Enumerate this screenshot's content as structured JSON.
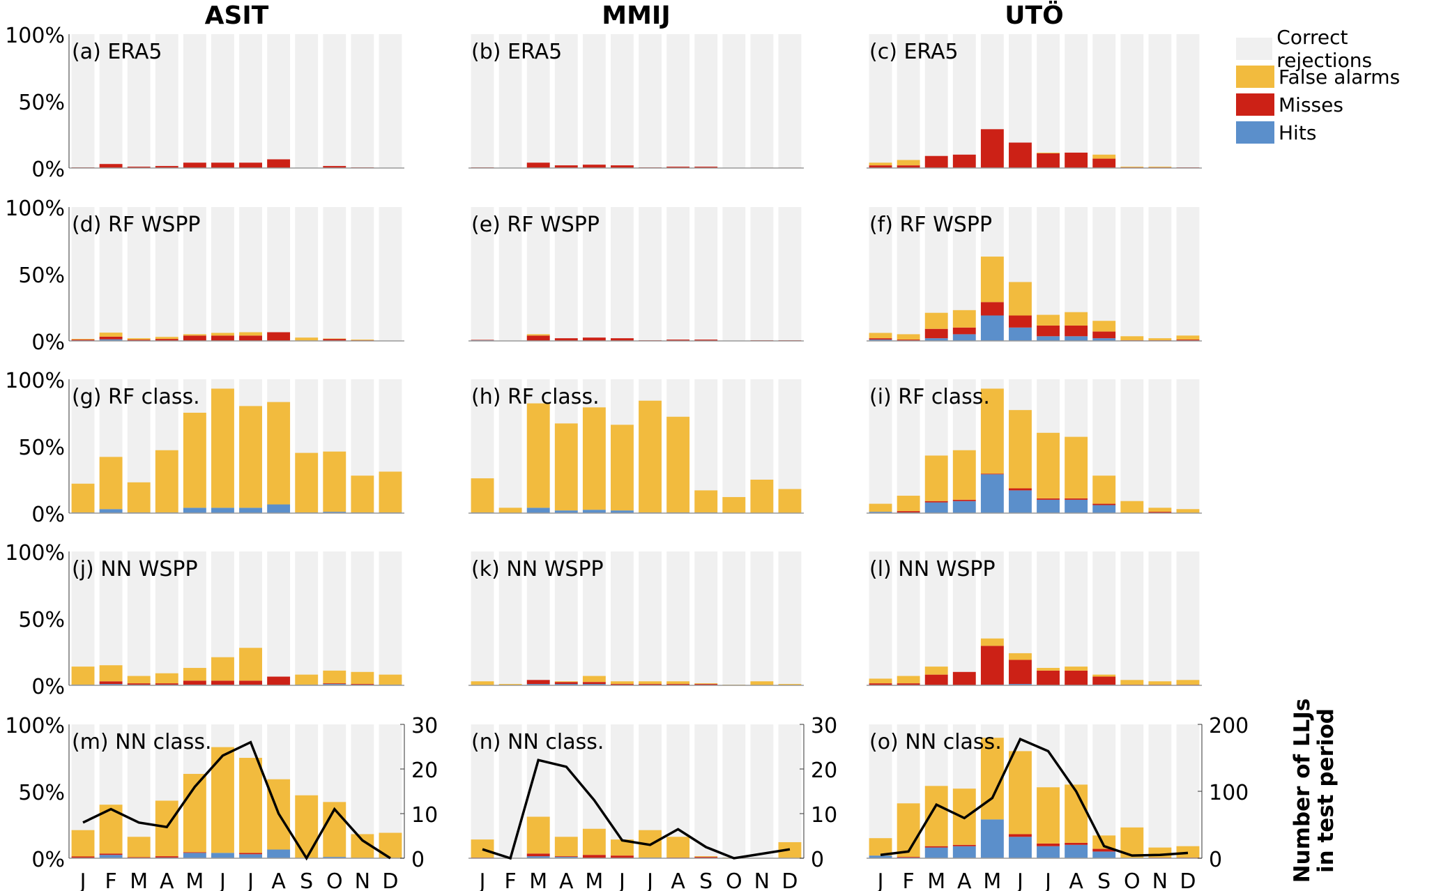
{
  "columns": [
    "ASIT",
    "MMIJ",
    "UTÖ"
  ],
  "legend": [
    {
      "name": "Correct rejections",
      "color": "#f0f0f0"
    },
    {
      "name": "False alarms",
      "color": "#f2bb3e"
    },
    {
      "name": "Misses",
      "color": "#cc2116"
    },
    {
      "name": "Hits",
      "color": "#5b8fcb"
    }
  ],
  "left_ticks": [
    "0%",
    "50%",
    "100%"
  ],
  "right_axis": {
    "label_line1": "Number of LLJs",
    "label_line2": "in test period",
    "ticks_small": [
      "0",
      "10",
      "20",
      "30"
    ],
    "ticks_large": [
      "0",
      "100",
      "200"
    ]
  },
  "months": [
    "J",
    "F",
    "M",
    "A",
    "M",
    "J",
    "J",
    "A",
    "S",
    "O",
    "N",
    "D"
  ],
  "chart_data": [
    {
      "type": "bar",
      "stacked": true,
      "title": "(a) ERA5",
      "station": "ASIT",
      "ylim": [
        0,
        100
      ],
      "series": [
        {
          "name": "Hits",
          "values": [
            0,
            0,
            0,
            0,
            0,
            0,
            0,
            0,
            0,
            0,
            0,
            0
          ]
        },
        {
          "name": "Misses",
          "values": [
            0.5,
            3,
            1,
            1.5,
            4,
            4,
            4,
            6.5,
            0,
            1.5,
            0.5,
            0
          ]
        },
        {
          "name": "False alarms",
          "values": [
            0,
            0,
            0,
            0,
            0,
            0,
            0,
            0,
            0,
            0,
            0,
            0
          ]
        }
      ]
    },
    {
      "type": "bar",
      "stacked": true,
      "title": "(b) ERA5",
      "station": "MMIJ",
      "ylim": [
        0,
        100
      ],
      "series": [
        {
          "name": "Hits",
          "values": [
            0,
            0,
            0,
            0,
            0,
            0,
            0,
            0,
            0,
            0,
            0,
            0
          ]
        },
        {
          "name": "Misses",
          "values": [
            0.5,
            0,
            4,
            2,
            2.5,
            2,
            0.5,
            1,
            1,
            0,
            0.3,
            0.3
          ]
        },
        {
          "name": "False alarms",
          "values": [
            0,
            0,
            0,
            0,
            0,
            0,
            0,
            0,
            0,
            0,
            0,
            0
          ]
        }
      ]
    },
    {
      "type": "bar",
      "stacked": true,
      "title": "(c) ERA5",
      "station": "UTÖ",
      "ylim": [
        0,
        100
      ],
      "series": [
        {
          "name": "Hits",
          "values": [
            0,
            0,
            0,
            0,
            0,
            0,
            0,
            0,
            0,
            0,
            0,
            0
          ]
        },
        {
          "name": "Misses",
          "values": [
            2,
            2,
            9,
            10,
            29,
            19,
            11,
            11.5,
            7,
            0.5,
            0.5,
            0.5
          ]
        },
        {
          "name": "False alarms",
          "values": [
            2,
            4,
            0,
            0,
            0,
            0,
            0.5,
            0,
            3,
            0.5,
            0.5,
            0
          ]
        }
      ]
    },
    {
      "type": "bar",
      "stacked": true,
      "title": "(d) RF WSPP",
      "station": "ASIT",
      "ylim": [
        0,
        100
      ],
      "series": [
        {
          "name": "Hits",
          "values": [
            0,
            1.2,
            0,
            0,
            0,
            0,
            0,
            0,
            0,
            0,
            0,
            0
          ]
        },
        {
          "name": "Misses",
          "values": [
            1,
            2,
            1,
            1.5,
            4,
            4,
            4,
            6.5,
            0,
            1.5,
            0.5,
            0
          ]
        },
        {
          "name": "False alarms",
          "values": [
            0.5,
            3,
            1,
            1.5,
            1,
            2,
            2.5,
            0,
            2.5,
            0.3,
            0.5,
            0
          ]
        }
      ]
    },
    {
      "type": "bar",
      "stacked": true,
      "title": "(e) RF WSPP",
      "station": "MMIJ",
      "ylim": [
        0,
        100
      ],
      "series": [
        {
          "name": "Hits",
          "values": [
            0.5,
            0,
            0,
            0,
            0,
            0,
            0,
            0,
            0,
            0,
            0,
            0
          ]
        },
        {
          "name": "Misses",
          "values": [
            0.3,
            0,
            4,
            2,
            2.5,
            2,
            0.5,
            1,
            1,
            0,
            0.5,
            0.5
          ]
        },
        {
          "name": "False alarms",
          "values": [
            0,
            0,
            1,
            0,
            0,
            0,
            0,
            0,
            0,
            0,
            0,
            0
          ]
        }
      ]
    },
    {
      "type": "bar",
      "stacked": true,
      "title": "(f) RF WSPP",
      "station": "UTÖ",
      "ylim": [
        0,
        100
      ],
      "series": [
        {
          "name": "Hits",
          "values": [
            1,
            0,
            2,
            5,
            19,
            10,
            3.5,
            3.5,
            2,
            0,
            0,
            0
          ]
        },
        {
          "name": "Misses",
          "values": [
            1,
            1,
            7,
            5,
            10,
            9,
            8,
            8,
            5,
            0.5,
            0.5,
            1
          ]
        },
        {
          "name": "False alarms",
          "values": [
            4,
            4,
            12,
            13,
            34,
            25,
            8,
            10,
            8,
            3,
            1.5,
            3
          ]
        }
      ]
    },
    {
      "type": "bar",
      "stacked": true,
      "title": "(g) RF class.",
      "station": "ASIT",
      "ylim": [
        0,
        100
      ],
      "series": [
        {
          "name": "Hits",
          "values": [
            0.5,
            3,
            0.5,
            0.5,
            4,
            4,
            4,
            6.5,
            0.5,
            1,
            0.5,
            0.5
          ]
        },
        {
          "name": "Misses",
          "values": [
            0,
            0,
            0,
            0,
            0,
            0,
            0,
            0,
            0,
            0,
            0,
            0
          ]
        },
        {
          "name": "False alarms",
          "values": [
            21.5,
            39,
            22.5,
            46.5,
            71,
            89,
            76,
            76.5,
            44.5,
            45,
            27.5,
            30.5
          ]
        }
      ]
    },
    {
      "type": "bar",
      "stacked": true,
      "title": "(h) RF class.",
      "station": "MMIJ",
      "ylim": [
        0,
        100
      ],
      "series": [
        {
          "name": "Hits",
          "values": [
            0.5,
            0,
            4,
            2,
            2.5,
            2,
            0.5,
            0.5,
            0.5,
            0,
            0,
            0
          ]
        },
        {
          "name": "Misses",
          "values": [
            0,
            0,
            0,
            0,
            0,
            0,
            0,
            0,
            0,
            0,
            0,
            0
          ]
        },
        {
          "name": "False alarms",
          "values": [
            25.5,
            4,
            78,
            65,
            76.5,
            64,
            83.5,
            71.5,
            16.5,
            12,
            25,
            18
          ]
        }
      ]
    },
    {
      "type": "bar",
      "stacked": true,
      "title": "(i) RF class.",
      "station": "UTÖ",
      "ylim": [
        0,
        100
      ],
      "series": [
        {
          "name": "Hits",
          "values": [
            1,
            0.5,
            8,
            9,
            29,
            17,
            10,
            10,
            6,
            0,
            0,
            0
          ]
        },
        {
          "name": "Misses",
          "values": [
            0,
            1,
            1,
            1,
            0.5,
            1.5,
            1,
            1,
            1,
            0,
            1,
            0
          ]
        },
        {
          "name": "False alarms",
          "values": [
            6,
            11.5,
            34,
            37,
            63.5,
            58.5,
            49,
            46,
            21,
            9,
            3,
            3
          ]
        }
      ]
    },
    {
      "type": "bar",
      "stacked": true,
      "title": "(j) NN WSPP",
      "station": "ASIT",
      "ylim": [
        0,
        100
      ],
      "series": [
        {
          "name": "Hits",
          "values": [
            0.5,
            1,
            0.5,
            0.5,
            0.5,
            0.5,
            0.5,
            0,
            0.5,
            1,
            0.5,
            0.5
          ]
        },
        {
          "name": "Misses",
          "values": [
            0,
            2,
            1,
            1,
            3,
            3,
            3,
            6.5,
            0,
            0.5,
            0.5,
            0
          ]
        },
        {
          "name": "False alarms",
          "values": [
            13.5,
            12,
            5.5,
            7.5,
            9.5,
            17.5,
            24.5,
            0,
            7.5,
            9.5,
            9,
            7.5
          ]
        }
      ]
    },
    {
      "type": "bar",
      "stacked": true,
      "title": "(k) NN WSPP",
      "station": "MMIJ",
      "ylim": [
        0,
        100
      ],
      "series": [
        {
          "name": "Hits",
          "values": [
            0,
            0,
            1,
            1,
            1,
            0,
            0,
            0,
            0,
            0,
            0,
            0
          ]
        },
        {
          "name": "Misses",
          "values": [
            0,
            0,
            3,
            1.5,
            1.5,
            1,
            1,
            1,
            1,
            0,
            0,
            0
          ]
        },
        {
          "name": "False alarms",
          "values": [
            3,
            1,
            0,
            0.5,
            4.5,
            2,
            2,
            2,
            0.5,
            0.5,
            3,
            1
          ]
        }
      ]
    },
    {
      "type": "bar",
      "stacked": true,
      "title": "(l) NN WSPP",
      "station": "UTÖ",
      "ylim": [
        0,
        100
      ],
      "series": [
        {
          "name": "Hits",
          "values": [
            0,
            0,
            0,
            0,
            0.5,
            1,
            0,
            0,
            0.5,
            0,
            0,
            0
          ]
        },
        {
          "name": "Misses",
          "values": [
            1.5,
            1.5,
            8,
            10,
            29,
            18,
            11,
            11,
            6,
            0.5,
            0.5,
            0.5
          ]
        },
        {
          "name": "False alarms",
          "values": [
            3.5,
            5.5,
            6,
            0,
            5.5,
            5,
            2,
            3,
            1.5,
            3.5,
            2.5,
            3.5
          ]
        }
      ]
    },
    {
      "type": "bar",
      "stacked": true,
      "title": "(m) NN class.",
      "station": "ASIT",
      "ylim": [
        0,
        100
      ],
      "series": [
        {
          "name": "Hits",
          "values": [
            0.3,
            2.5,
            0.3,
            0.5,
            4,
            4,
            3,
            6.5,
            0.3,
            1,
            0.3,
            0.3
          ]
        },
        {
          "name": "Misses",
          "values": [
            1,
            1,
            0.5,
            1,
            0.5,
            0,
            1,
            0,
            0,
            0,
            0,
            0
          ]
        },
        {
          "name": "False alarms",
          "values": [
            19.7,
            36.5,
            15.2,
            41.5,
            58.5,
            79,
            71,
            52.5,
            46.7,
            41,
            17.7,
            18.7
          ]
        }
      ],
      "line": {
        "name": "Number of LLJs in test period",
        "ylim": [
          0,
          30
        ],
        "values": [
          8,
          11,
          8,
          7,
          16,
          23,
          26,
          10,
          0,
          11,
          4,
          0
        ]
      }
    },
    {
      "type": "bar",
      "stacked": true,
      "title": "(n) NN class.",
      "station": "MMIJ",
      "ylim": [
        0,
        100
      ],
      "series": [
        {
          "name": "Hits",
          "values": [
            0,
            0,
            1.5,
            1,
            0,
            0,
            0.5,
            0,
            0,
            0,
            0,
            0
          ]
        },
        {
          "name": "Misses",
          "values": [
            0.5,
            0,
            2,
            0.5,
            2.5,
            2,
            0,
            0.5,
            1,
            0,
            0,
            0
          ]
        },
        {
          "name": "False alarms",
          "values": [
            13.5,
            0,
            27.5,
            14.5,
            19.5,
            12,
            20.5,
            15.5,
            0.5,
            0.5,
            0,
            12
          ]
        }
      ],
      "line": {
        "name": "Number of LLJs in test period",
        "ylim": [
          0,
          30
        ],
        "values": [
          2,
          0,
          22,
          20.5,
          13,
          4,
          3,
          6.5,
          2.5,
          0,
          1,
          2
        ]
      }
    },
    {
      "type": "bar",
      "stacked": true,
      "title": "(o) NN class.",
      "station": "UTÖ",
      "ylim": [
        0,
        100
      ],
      "series": [
        {
          "name": "Hits",
          "values": [
            2,
            0.5,
            8,
            9,
            29,
            16,
            9,
            10,
            5,
            0,
            0,
            0
          ]
        },
        {
          "name": "Misses",
          "values": [
            0,
            0.5,
            1,
            1,
            0,
            2,
            2,
            1.5,
            2,
            0,
            0.5,
            0.5
          ]
        },
        {
          "name": "False alarms",
          "values": [
            13,
            40,
            45,
            42,
            61,
            62,
            42,
            43.5,
            10,
            23,
            7.5,
            8.5
          ]
        }
      ],
      "line": {
        "name": "Number of LLJs in test period",
        "ylim": [
          0,
          200
        ],
        "values": [
          5,
          10,
          80,
          60,
          90,
          178,
          160,
          100,
          18,
          4,
          5,
          8
        ]
      }
    }
  ]
}
